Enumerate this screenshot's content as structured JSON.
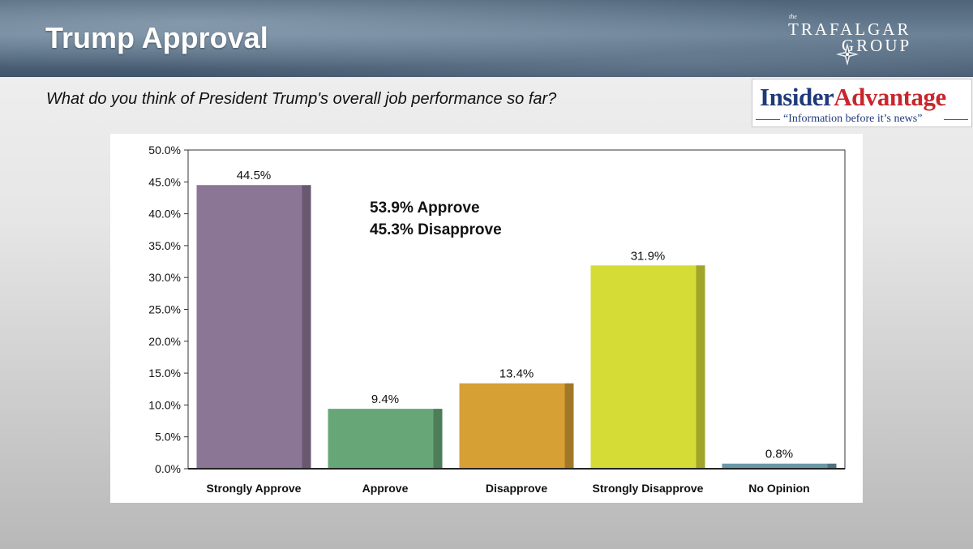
{
  "header": {
    "title": "Trump Approval"
  },
  "trafalgar_logo": {
    "the": "the",
    "line1": "TRAFALGAR",
    "line2": "GROUP"
  },
  "question": "What do you think of President Trump's overall job performance so far?",
  "insider_logo": {
    "insider": "Insider",
    "advantage": "Advantage",
    "tagline": "“Information before it’s news”"
  },
  "chart_data": {
    "type": "bar",
    "title": "",
    "xlabel": "",
    "ylabel": "",
    "ylim": [
      0,
      50
    ],
    "ytick_step": 5,
    "ytick_labels": [
      "0.0%",
      "5.0%",
      "10.0%",
      "15.0%",
      "20.0%",
      "25.0%",
      "30.0%",
      "35.0%",
      "40.0%",
      "45.0%",
      "50.0%"
    ],
    "categories": [
      "Strongly Approve",
      "Approve",
      "Disapprove",
      "Strongly Disapprove",
      "No Opinion"
    ],
    "values": [
      44.5,
      9.4,
      13.4,
      31.9,
      0.8
    ],
    "data_labels": [
      "44.5%",
      "9.4%",
      "13.4%",
      "31.9%",
      "0.8%"
    ],
    "colors": [
      "#8b7696",
      "#67a777",
      "#d6a035",
      "#d6dc36",
      "#6a98a8"
    ],
    "annotations": [
      "53.9% Approve",
      "45.3% Disapprove"
    ],
    "grid": false,
    "legend": "none"
  }
}
